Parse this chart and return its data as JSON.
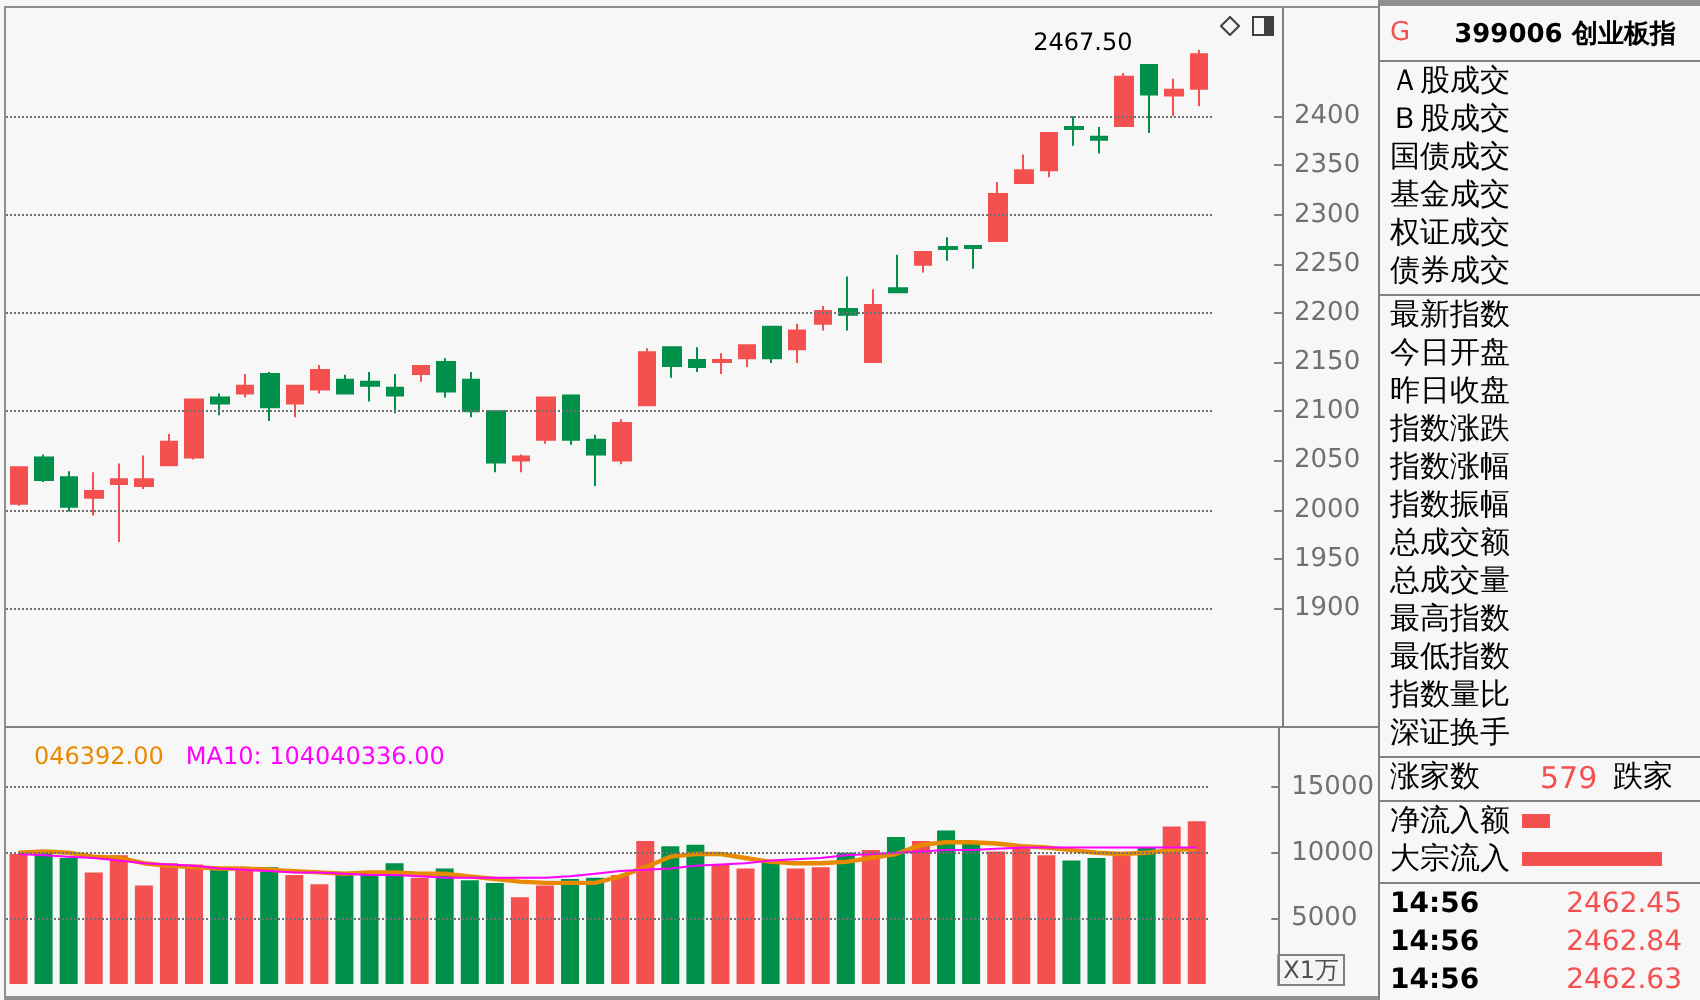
{
  "chart_data": [
    {
      "type": "candlestick",
      "categories": [
        null,
        null,
        null,
        null,
        null,
        null,
        null,
        null,
        null,
        null,
        null,
        null,
        null,
        null,
        null,
        null,
        null,
        null,
        null,
        null,
        null,
        null,
        null,
        null,
        null,
        null,
        null,
        null,
        null,
        null,
        null,
        null,
        null,
        null,
        null,
        null,
        null,
        null,
        null,
        null,
        null,
        null,
        null,
        null,
        null,
        null,
        null,
        null
      ],
      "ohlc": [
        [
          2006,
          2043,
          2004,
          2043
        ],
        [
          2053,
          2056,
          2028,
          2030
        ],
        [
          2033,
          2039,
          1998,
          2003
        ],
        [
          2012,
          2038,
          1994,
          2019
        ],
        [
          2026,
          2047,
          1967,
          2031
        ],
        [
          2024,
          2055,
          2021,
          2031
        ],
        [
          2045,
          2077,
          2044,
          2069
        ],
        [
          2053,
          2112,
          2051,
          2112
        ],
        [
          2114,
          2118,
          2096,
          2108
        ],
        [
          2118,
          2138,
          2114,
          2126
        ],
        [
          2138,
          2140,
          2090,
          2104
        ],
        [
          2108,
          2126,
          2094,
          2126
        ],
        [
          2122,
          2147,
          2118,
          2142
        ],
        [
          2132,
          2137,
          2118,
          2118
        ],
        [
          2130,
          2140,
          2110,
          2126
        ],
        [
          2124,
          2138,
          2098,
          2116
        ],
        [
          2138,
          2146,
          2130,
          2146
        ],
        [
          2150,
          2154,
          2114,
          2120
        ],
        [
          2132,
          2140,
          2094,
          2100
        ],
        [
          2100,
          2100,
          2038,
          2048
        ],
        [
          2050,
          2056,
          2038,
          2054
        ],
        [
          2071,
          2114,
          2067,
          2114
        ],
        [
          2116,
          2116,
          2066,
          2071
        ],
        [
          2071,
          2076,
          2024,
          2056
        ],
        [
          2050,
          2092,
          2046,
          2088
        ],
        [
          2106,
          2164,
          2106,
          2160
        ],
        [
          2165,
          2166,
          2134,
          2146
        ],
        [
          2152,
          2165,
          2140,
          2145
        ],
        [
          2150,
          2159,
          2138,
          2152
        ],
        [
          2154,
          2167,
          2145,
          2167
        ],
        [
          2186,
          2186,
          2149,
          2154
        ],
        [
          2163,
          2189,
          2149,
          2182
        ],
        [
          2189,
          2207,
          2182,
          2202
        ],
        [
          2204,
          2237,
          2182,
          2198
        ],
        [
          2150,
          2224,
          2150,
          2208
        ],
        [
          2225,
          2259,
          2221,
          2221
        ],
        [
          2249,
          2262,
          2241,
          2262
        ],
        [
          2267,
          2277,
          2253,
          2265
        ],
        [
          2268,
          2268,
          2245,
          2266
        ],
        [
          2273,
          2333,
          2273,
          2321
        ],
        [
          2332,
          2361,
          2332,
          2345
        ],
        [
          2345,
          2383,
          2338,
          2383
        ],
        [
          2389,
          2400,
          2370,
          2387
        ],
        [
          2379,
          2389,
          2362,
          2376
        ],
        [
          2390,
          2444,
          2390,
          2440
        ],
        [
          2452,
          2452,
          2383,
          2422
        ],
        [
          2421,
          2438,
          2400,
          2427
        ],
        [
          2428,
          2467.5,
          2410,
          2463
        ]
      ],
      "colors": [
        "#f55050",
        "#00904a",
        "#00904a",
        "#f55050",
        "#f55050",
        "#f55050",
        "#f55050",
        "#f55050",
        "#00904a",
        "#f55050",
        "#00904a",
        "#f55050",
        "#f55050",
        "#00904a",
        "#00904a",
        "#00904a",
        "#f55050",
        "#00904a",
        "#00904a",
        "#00904a",
        "#f55050",
        "#f55050",
        "#00904a",
        "#00904a",
        "#f55050",
        "#f55050",
        "#00904a",
        "#00904a",
        "#f55050",
        "#f55050",
        "#00904a",
        "#f55050",
        "#f55050",
        "#00904a",
        "#f55050",
        "#00904a",
        "#f55050",
        "#00904a",
        "#00904a",
        "#f55050",
        "#f55050",
        "#f55050",
        "#00904a",
        "#00904a",
        "#f55050",
        "#00904a",
        "#f55050",
        "#f55050"
      ],
      "ylim": [
        1780,
        2510
      ],
      "yticks": [
        1900,
        1950,
        2000,
        2050,
        2100,
        2150,
        2200,
        2250,
        2300,
        2350,
        2400
      ],
      "grid": "y",
      "tick_labels": "y",
      "annotations": [
        "2467.50"
      ]
    },
    {
      "type": "bar",
      "categories": [
        null,
        null,
        null,
        null,
        null,
        null,
        null,
        null,
        null,
        null,
        null,
        null,
        null,
        null,
        null,
        null,
        null,
        null,
        null,
        null,
        null,
        null,
        null,
        null,
        null,
        null,
        null,
        null,
        null,
        null,
        null,
        null,
        null,
        null,
        null,
        null,
        null,
        null,
        null,
        null,
        null,
        null,
        null,
        null,
        null,
        null,
        null,
        null
      ],
      "series": [
        {
          "type": "bar",
          "values": [
            9900,
            10200,
            9600,
            8500,
            9800,
            7500,
            9200,
            9100,
            8800,
            8700,
            8900,
            8300,
            7600,
            8400,
            8400,
            9200,
            8100,
            8800,
            7900,
            7700,
            6600,
            7500,
            8000,
            8100,
            8300,
            10900,
            10500,
            10600,
            9100,
            8800,
            9400,
            8800,
            8900,
            10000,
            10200,
            11200,
            10900,
            11700,
            10800,
            10100,
            10400,
            9800,
            9400,
            9600,
            9800,
            10400,
            12000,
            12400
          ],
          "colors": [
            "#f55050",
            "#00904a",
            "#00904a",
            "#f55050",
            "#f55050",
            "#f55050",
            "#f55050",
            "#f55050",
            "#00904a",
            "#f55050",
            "#00904a",
            "#f55050",
            "#f55050",
            "#00904a",
            "#00904a",
            "#00904a",
            "#f55050",
            "#00904a",
            "#00904a",
            "#00904a",
            "#f55050",
            "#f55050",
            "#00904a",
            "#00904a",
            "#f55050",
            "#f55050",
            "#00904a",
            "#00904a",
            "#f55050",
            "#f55050",
            "#00904a",
            "#f55050",
            "#f55050",
            "#00904a",
            "#f55050",
            "#00904a",
            "#f55050",
            "#00904a",
            "#00904a",
            "#f55050",
            "#f55050",
            "#f55050",
            "#00904a",
            "#00904a",
            "#f55050",
            "#00904a",
            "#f55050",
            "#f55050"
          ]
        },
        {
          "type": "line",
          "name": "046392.00",
          "color": "#e88a00",
          "values": [
            10000,
            10100,
            10000,
            9700,
            9600,
            9200,
            9000,
            8900,
            8800,
            8800,
            8700,
            8600,
            8500,
            8400,
            8500,
            8500,
            8400,
            8400,
            8200,
            8000,
            7800,
            7700,
            7700,
            7700,
            8200,
            8900,
            9700,
            9900,
            9900,
            9600,
            9300,
            9200,
            9200,
            9300,
            9600,
            9900,
            10600,
            10800,
            10800,
            10700,
            10500,
            10400,
            10200,
            10000,
            9900,
            10000,
            10200,
            10300
          ]
        },
        {
          "type": "line",
          "name": "MA10: 104040336.00",
          "color": "#ff00ff",
          "values": [
            9900,
            9800,
            9700,
            9600,
            9400,
            9200,
            9100,
            9000,
            8800,
            8700,
            8600,
            8500,
            8500,
            8400,
            8300,
            8300,
            8200,
            8100,
            8100,
            8100,
            8100,
            8100,
            8200,
            8400,
            8600,
            8700,
            8800,
            9000,
            9100,
            9200,
            9400,
            9500,
            9600,
            9800,
            9900,
            10000,
            10100,
            10200,
            10200,
            10300,
            10400,
            10400,
            10400,
            10400,
            10400,
            10400,
            10400,
            10400
          ]
        }
      ],
      "ylim": [
        0,
        19500
      ],
      "yticks": [
        5000,
        10000,
        15000
      ],
      "grid": "y",
      "tick_labels": "y",
      "ylabel": "X1万",
      "legend": "top left",
      "marker": "none"
    },
    {
      "type": "other",
      "annotations": [
        "G\t399006 创业板指",
        "Ａ股成交",
        "Ｂ股成交",
        "国债成交",
        "基金成交",
        "权证成交",
        "债券成交",
        "最新指数",
        "今日开盘",
        "昨日收盘",
        "指数涨跌",
        "指数涨幅",
        "指数振幅",
        "总成交额",
        "总成交量",
        "最高指数",
        "最低指数",
        "指数量比",
        "深证换手",
        "涨家数\t579\t跌家",
        "净流入额",
        "大宗流入",
        "14:56\t2462.45",
        "14:56\t2462.84",
        "14:56\t2462.63"
      ]
    }
  ]
}
